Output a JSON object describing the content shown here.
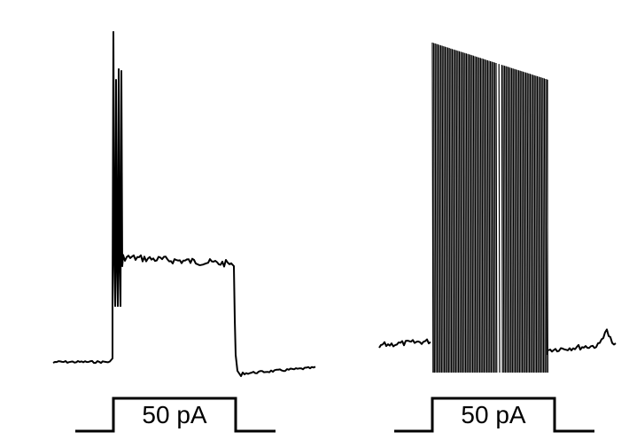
{
  "panels": [
    {
      "id": "left",
      "pulse_label": "50 pA"
    },
    {
      "id": "right",
      "pulse_label": "50 pA"
    }
  ],
  "colors": {
    "trace": "#000000",
    "background": "#ffffff"
  }
}
